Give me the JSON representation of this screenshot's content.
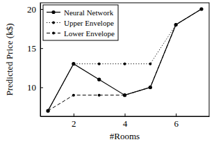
{
  "chart_data": {
    "type": "line",
    "x_label": "#Rooms",
    "y_label": "Predicted Price (k$)",
    "x": [
      1,
      2,
      3,
      4,
      5,
      6,
      7
    ],
    "series": [
      {
        "name": "Neural Network",
        "color": "#000000",
        "line_style": "solid",
        "marker": "circle",
        "values": [
          7,
          13,
          11,
          9,
          10,
          18,
          20
        ]
      },
      {
        "name": "Upper Envelope",
        "color": "#000000",
        "line_style": "dotted",
        "marker": "circle",
        "values": [
          7,
          13,
          13,
          13,
          13,
          18,
          20
        ]
      },
      {
        "name": "Lower Envelope",
        "color": "#000000",
        "line_style": "dashed",
        "marker": "circle",
        "values": [
          7,
          9,
          9,
          9,
          10,
          18,
          20
        ]
      }
    ],
    "xlim": [
      0.7,
      7.3
    ],
    "xticks": [
      2,
      4,
      6
    ],
    "ylim": [
      6.3,
      20.8
    ],
    "yticks": [
      10,
      15,
      20
    ],
    "legend": "top-left",
    "grid": false
  }
}
